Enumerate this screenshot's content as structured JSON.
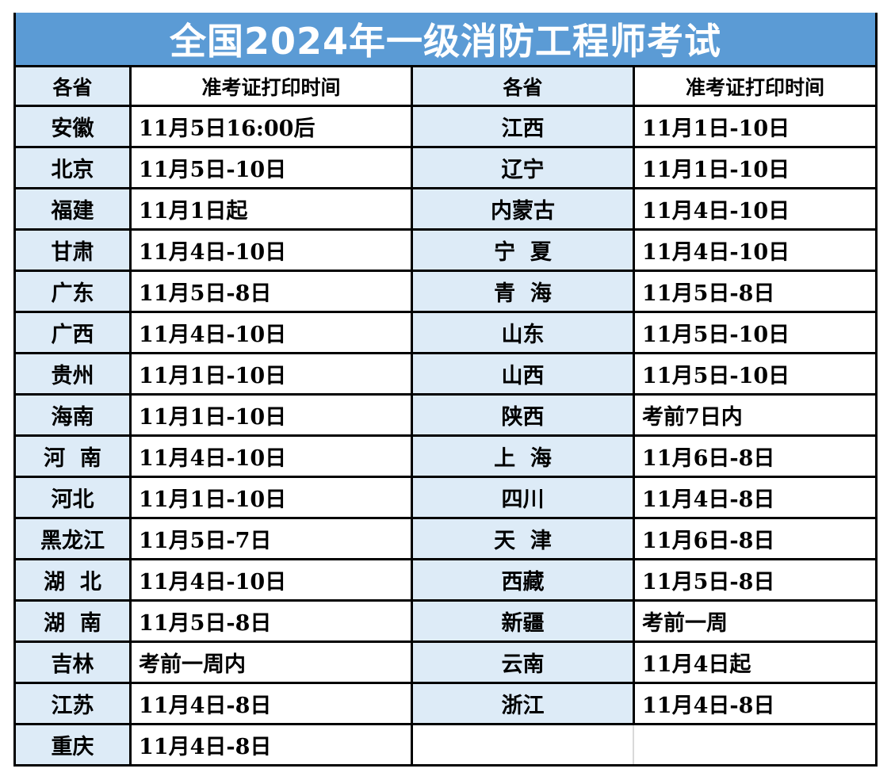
{
  "table": {
    "title": "全国2024年一级消防工程师考试",
    "colors": {
      "title_bg": "#5B9BD5",
      "title_text": "#FFFFFF",
      "province_cell_bg": "#DDEBF7",
      "grid_border": "#000000",
      "empty_row_divider": "#D9D9D9"
    },
    "header": {
      "province_label": "各省",
      "time_label": "准考证打印时间"
    },
    "rows": [
      {
        "p1": "安徽",
        "t1": "11月5日16:00后",
        "p2": "江西",
        "t2": "11月1日-10日"
      },
      {
        "p1": "北京",
        "t1": "11月5日-10日",
        "p2": "辽宁",
        "t2": "11月1日-10日"
      },
      {
        "p1": "福建",
        "t1": "11月1日起",
        "p2": "内蒙古",
        "t2": "11月4日-10日"
      },
      {
        "p1": "甘肃",
        "t1": "11月4日-10日",
        "p2": "宁  夏",
        "t2": "11月4日-10日"
      },
      {
        "p1": "广东",
        "t1": "11月5日-8日",
        "p2": "青  海",
        "t2": "11月5日-8日"
      },
      {
        "p1": "广西",
        "t1": "11月4日-10日",
        "p2": "山东",
        "t2": "11月5日-10日"
      },
      {
        "p1": "贵州",
        "t1": "11月1日-10日",
        "p2": "山西",
        "t2": "11月5日-10日"
      },
      {
        "p1": "海南",
        "t1": "11月1日-10日",
        "p2": "陕西",
        "t2": "考前7日内"
      },
      {
        "p1": "河  南",
        "t1": "11月4日-10日",
        "p2": "上  海",
        "t2": "11月6日-8日"
      },
      {
        "p1": "河北",
        "t1": "11月1日-10日",
        "p2": "四川",
        "t2": "11月4日-8日"
      },
      {
        "p1": "黑龙江",
        "t1": "11月5日-7日",
        "p2": "天  津",
        "t2": "11月6日-8日"
      },
      {
        "p1": "湖  北",
        "t1": "11月4日-10日",
        "p2": "西藏",
        "t2": "11月5日-8日"
      },
      {
        "p1": "湖  南",
        "t1": "11月5日-8日",
        "p2": "新疆",
        "t2": "考前一周"
      },
      {
        "p1": "吉林",
        "t1": "考前一周内",
        "p2": "云南",
        "t2": "11月4日起"
      },
      {
        "p1": "江苏",
        "t1": "11月4日-8日",
        "p2": "浙江",
        "t2": "11月4日-8日"
      },
      {
        "p1": "重庆",
        "t1": "11月4日-8日",
        "p2": "",
        "t2": "",
        "empty_right": true
      }
    ]
  }
}
